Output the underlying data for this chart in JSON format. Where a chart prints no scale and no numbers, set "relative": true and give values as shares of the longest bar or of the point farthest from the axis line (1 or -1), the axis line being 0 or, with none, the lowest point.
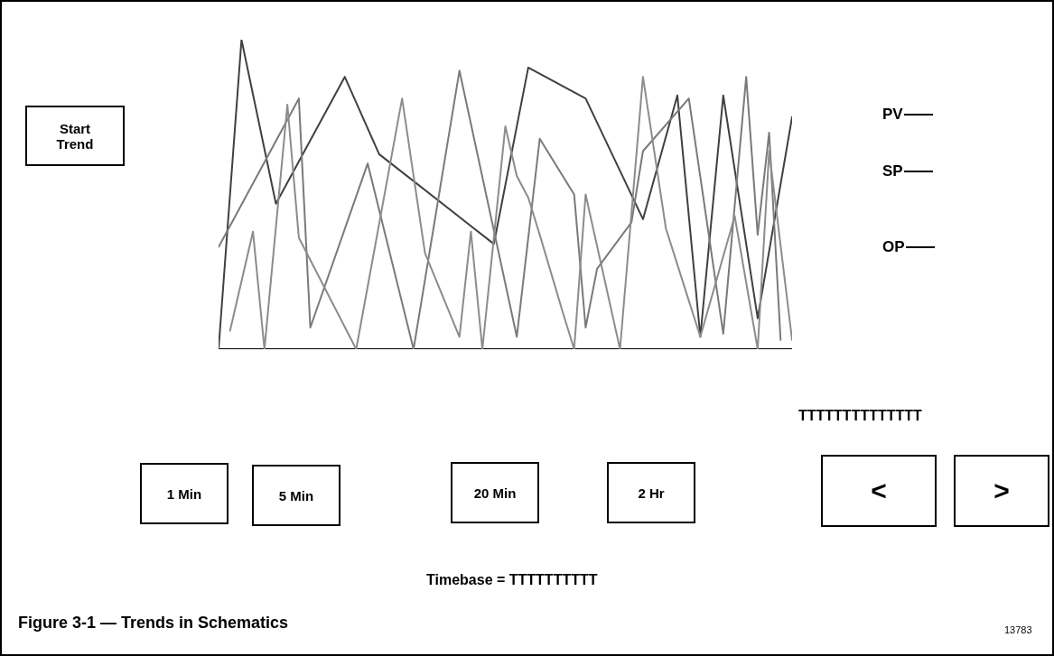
{
  "chart_data": {
    "type": "line",
    "title": "Figure 3-1 — Trends in Schematics",
    "relative": true,
    "line_style": "solid",
    "annotations": [
      "Start Trend",
      "1 Min",
      "5 Min",
      "20 Min",
      "2 Hr",
      "<",
      ">",
      "TTTTTTTTTTTTTT",
      "Timebase = TTTTTTTTTT",
      "13783"
    ],
    "categories": [
      null,
      null,
      null,
      null,
      null,
      null,
      null,
      null,
      null,
      null,
      null,
      null,
      null,
      null,
      null,
      null,
      null,
      null,
      null,
      null,
      null,
      null,
      null,
      null,
      null,
      null,
      null,
      null,
      null,
      null,
      null,
      null,
      null,
      null,
      null,
      null,
      null,
      null,
      null,
      null,
      null,
      null,
      null,
      null,
      null,
      null,
      null,
      null,
      null,
      null,
      null
    ],
    "series": [
      {
        "name": "PV",
        "color": "#404040",
        "values": [
          0,
          null,
          1,
          null,
          null,
          0.47,
          null,
          null,
          null,
          null,
          null,
          0.88,
          null,
          null,
          0.63,
          null,
          null,
          null,
          null,
          null,
          null,
          null,
          null,
          null,
          0.34,
          null,
          null,
          0.91,
          null,
          null,
          null,
          null,
          0.81,
          null,
          null,
          null,
          null,
          0.42,
          null,
          null,
          0.82,
          null,
          0.04,
          null,
          0.82,
          null,
          null,
          0.1,
          null,
          null,
          0.75
        ]
      },
      {
        "name": "SP",
        "color": "#7a7a7a",
        "values": [
          0.33,
          null,
          null,
          null,
          null,
          null,
          null,
          0.81,
          0.07,
          null,
          null,
          null,
          null,
          0.6,
          null,
          null,
          null,
          0,
          null,
          null,
          null,
          0.9,
          null,
          null,
          null,
          null,
          0.04,
          null,
          0.68,
          null,
          null,
          0.5,
          0.07,
          0.26,
          null,
          null,
          0.41,
          0.64,
          null,
          null,
          null,
          0.81,
          null,
          null,
          0.05,
          null,
          0.88,
          0.37,
          0.7,
          0.03,
          null
        ]
      },
      {
        "name": "OP",
        "color": "#8c8c8c",
        "values": [
          null,
          0.06,
          null,
          0.38,
          0,
          null,
          0.79,
          0.36,
          null,
          null,
          null,
          null,
          0,
          null,
          null,
          null,
          0.81,
          null,
          0.31,
          null,
          null,
          0.04,
          0.38,
          0,
          null,
          0.72,
          0.56,
          0.49,
          0.37,
          null,
          0.12,
          0,
          0.5,
          null,
          null,
          0,
          null,
          0.88,
          null,
          0.39,
          null,
          null,
          0.04,
          null,
          null,
          0.43,
          null,
          0,
          0.64,
          null,
          0.03
        ]
      }
    ]
  }
}
